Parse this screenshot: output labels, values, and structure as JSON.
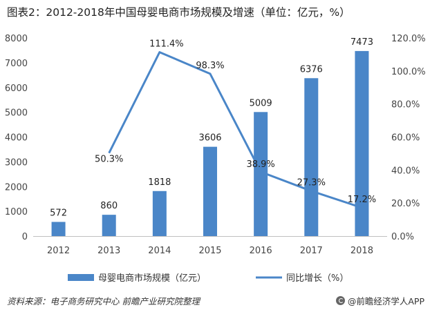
{
  "title": "图表2：2012-2018年中国母婴电商市场规模及增速（单位：亿元，%）",
  "footer": {
    "source": "资料来源：电子商务研究中心 前瞻产业研究院整理",
    "brand": "@前瞻经济学人APP"
  },
  "colors": {
    "bar": "#4a86c8",
    "line": "#4a86c8",
    "axis": "#bfbfbf"
  },
  "chart_data": {
    "type": "bar",
    "categories": [
      "2012",
      "2013",
      "2014",
      "2015",
      "2016",
      "2017",
      "2018"
    ],
    "series": [
      {
        "name": "母婴电商市场规模（亿元）",
        "type": "bar",
        "axis": "left",
        "values": [
          572,
          860,
          1818,
          3606,
          5009,
          6376,
          7473
        ],
        "labels": [
          "572",
          "860",
          "1818",
          "3606",
          "5009",
          "6376",
          "7473"
        ]
      },
      {
        "name": "同比增长（%）",
        "type": "line",
        "axis": "right",
        "values": [
          null,
          50.3,
          111.4,
          98.3,
          38.9,
          27.3,
          17.2
        ],
        "labels": [
          "",
          "50.3%",
          "111.4%",
          "98.3%",
          "38.9%",
          "27.3%",
          "17.2%"
        ]
      }
    ],
    "y_left": {
      "range": [
        0,
        8000
      ],
      "ticks": [
        "0",
        "1000",
        "2000",
        "3000",
        "4000",
        "5000",
        "6000",
        "7000",
        "8000"
      ]
    },
    "y_right": {
      "range": [
        0,
        120
      ],
      "ticks": [
        "0.0%",
        "20.0%",
        "40.0%",
        "60.0%",
        "80.0%",
        "100.0%",
        "120.0%"
      ]
    },
    "grid": false,
    "legend_position": "bottom"
  }
}
